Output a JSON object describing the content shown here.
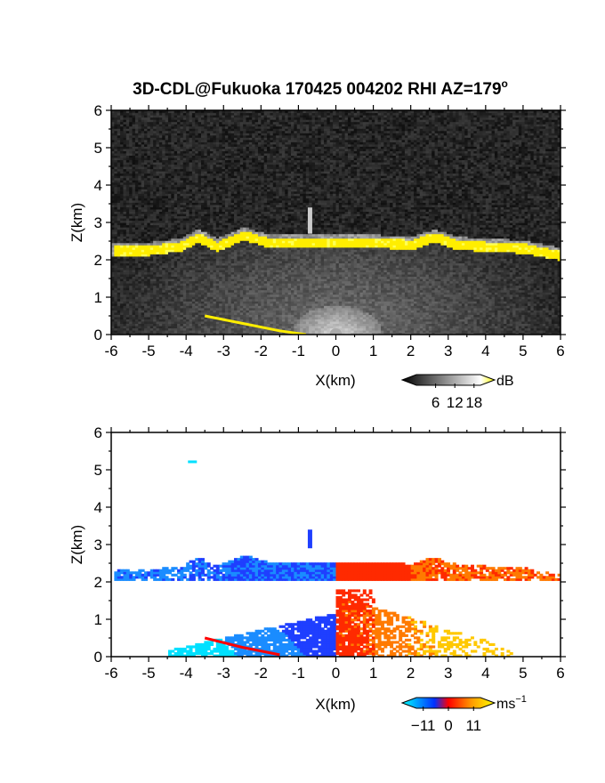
{
  "chart_data": [
    {
      "type": "heatmap",
      "panel": "reflectivity",
      "title_main": "3D-CDL@Fukuoka 170425 004202 RHI AZ=179",
      "title_sup": "o",
      "xlabel": "X(km)",
      "ylabel": "Z(km)",
      "xlim": [
        -6,
        6
      ],
      "ylim": [
        0,
        6
      ],
      "xticks": [
        "-6",
        "-5",
        "-4",
        "-3",
        "-2",
        "-1",
        "0",
        "1",
        "2",
        "3",
        "4",
        "5",
        "6"
      ],
      "yticks": [
        "0",
        "1",
        "2",
        "3",
        "4",
        "5",
        "6"
      ],
      "colorbar": {
        "unit": "dB",
        "ticks": [
          "6",
          "12",
          "18"
        ],
        "tick_values": [
          6,
          12,
          18
        ],
        "range": [
          0,
          20
        ],
        "colors": [
          "#000000",
          "#ffffff",
          "#ffff00"
        ]
      },
      "features": {
        "layer_top_km": [
          [
            -6,
            2.35
          ],
          [
            -5,
            2.35
          ],
          [
            -4.2,
            2.45
          ],
          [
            -3.7,
            2.7
          ],
          [
            -3.2,
            2.45
          ],
          [
            -2.5,
            2.75
          ],
          [
            -1.8,
            2.55
          ],
          [
            -1,
            2.55
          ],
          [
            0,
            2.55
          ],
          [
            1,
            2.55
          ],
          [
            2,
            2.5
          ],
          [
            2.6,
            2.7
          ],
          [
            3.2,
            2.5
          ],
          [
            4,
            2.45
          ],
          [
            5,
            2.4
          ],
          [
            6,
            2.2
          ]
        ],
        "low_echo_line": [
          [
            -3.5,
            0.5
          ],
          [
            -2.5,
            0.3
          ],
          [
            -1.5,
            0.1
          ],
          [
            -0.8,
            0.0
          ]
        ]
      }
    },
    {
      "type": "heatmap",
      "panel": "doppler_velocity",
      "xlabel": "X(km)",
      "ylabel": "Z(km)",
      "xlim": [
        -6,
        6
      ],
      "ylim": [
        0,
        6
      ],
      "xticks": [
        "-6",
        "-5",
        "-4",
        "-3",
        "-2",
        "-1",
        "0",
        "1",
        "2",
        "3",
        "4",
        "5",
        "6"
      ],
      "yticks": [
        "0",
        "1",
        "2",
        "3",
        "4",
        "5",
        "6"
      ],
      "colorbar": {
        "unit_base": "ms",
        "unit_sup": "−1",
        "ticks": [
          "−11",
          "0",
          "11"
        ],
        "tick_values": [
          -11,
          0,
          11
        ],
        "range": [
          -14,
          14
        ],
        "colors": [
          "#00ffff",
          "#0000ff",
          "#ff0000",
          "#ffa500",
          "#ffff00"
        ]
      },
      "features": {
        "layer_km": {
          "bottom": 2.1,
          "top": 2.55
        },
        "negative_color": "#1f5fff",
        "positive_color": "#ff4a00"
      }
    }
  ]
}
